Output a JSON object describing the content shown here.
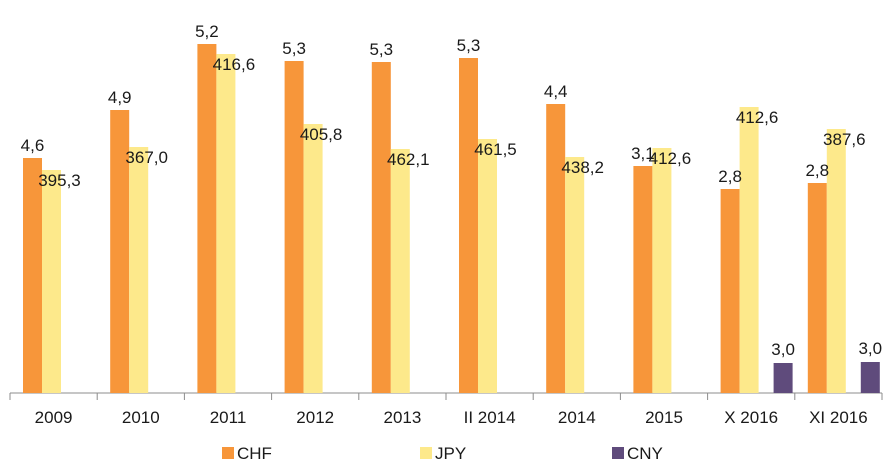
{
  "chart_data": {
    "type": "bar",
    "title": "",
    "xlabel": "",
    "ylabel": "",
    "categories": [
      "2009",
      "2010",
      "2011",
      "2012",
      "2013",
      "II 2014",
      "2014",
      "2015",
      "X 2016",
      "XI 2016"
    ],
    "series": [
      {
        "name": "CHF",
        "color": "#f7963a",
        "values": [
          4.6,
          4.9,
          5.2,
          5.3,
          5.3,
          5.3,
          4.4,
          3.1,
          2.8,
          2.8
        ],
        "labels": [
          "4,6",
          "4,9",
          "5,2",
          "5,3",
          "5,3",
          "5,3",
          "4,4",
          "3,1",
          "2,8",
          "2,8"
        ],
        "bar_heights": [
          235,
          283,
          349,
          332,
          331,
          335,
          289,
          227,
          204,
          210
        ]
      },
      {
        "name": "JPY",
        "color": "#fde98b",
        "values": [
          395.3,
          367.0,
          416.6,
          405.8,
          462.1,
          461.5,
          438.2,
          412.6,
          412.6,
          387.6
        ],
        "labels": [
          "395,3",
          "367,0",
          "416,6",
          "405,8",
          "462,1",
          "461,5",
          "438,2",
          "412,6",
          "412,6",
          "387,6"
        ],
        "bar_heights": [
          223,
          246,
          339,
          269,
          244,
          254,
          236,
          245,
          286,
          264
        ]
      },
      {
        "name": "CNY",
        "color": "#5f4b7c",
        "values": [
          null,
          null,
          null,
          null,
          null,
          null,
          null,
          null,
          3.0,
          3.0
        ],
        "labels": [
          "",
          "",
          "",
          "",
          "",
          "",
          "",
          "",
          "3,0",
          "3,0"
        ],
        "bar_heights": [
          0,
          0,
          0,
          0,
          0,
          0,
          0,
          0,
          30,
          31
        ]
      }
    ],
    "legend": {
      "position": "bottom",
      "entries": [
        "CHF",
        "JPY",
        "CNY"
      ]
    },
    "grid": false
  }
}
